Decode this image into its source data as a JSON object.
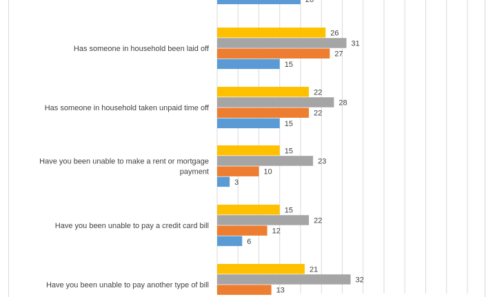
{
  "chart_data": {
    "type": "bar",
    "orientation": "horizontal",
    "categories": [
      "",
      "Has someone in household been laid off",
      "Has someone in household taken unpaid time off",
      "Have you been unable to make a rent or mortgage payment",
      "Have you been unable to pay a credit card bill",
      "Have you been unable to pay another type of bill"
    ],
    "series": [
      {
        "color": "#FFC000",
        "values": [
          null,
          26,
          22,
          15,
          15,
          21
        ]
      },
      {
        "color": "#A5A5A5",
        "values": [
          null,
          31,
          28,
          23,
          22,
          32
        ]
      },
      {
        "color": "#ED7D31",
        "values": [
          null,
          27,
          22,
          10,
          12,
          13
        ]
      },
      {
        "color": "#5B9BD5",
        "values": [
          20,
          15,
          15,
          3,
          6,
          null
        ]
      }
    ],
    "grid": true,
    "legend": "none"
  }
}
